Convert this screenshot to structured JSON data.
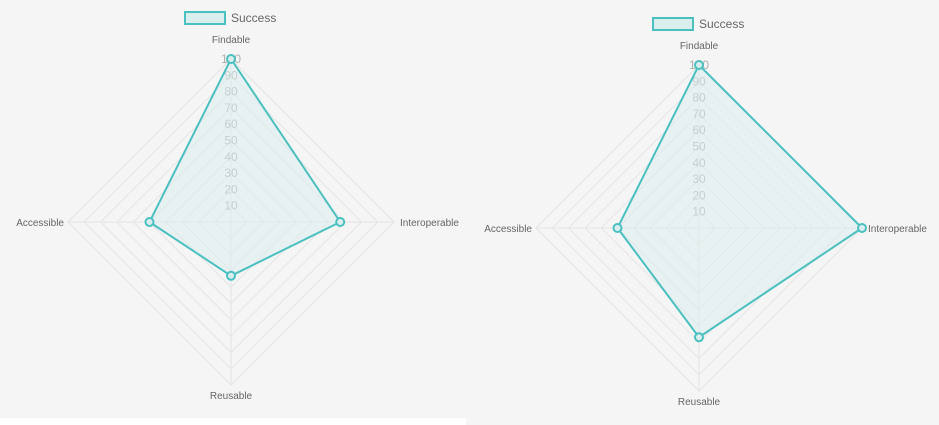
{
  "charts": [
    {
      "chart_data": {
        "type": "radar",
        "labels": [
          "Findable",
          "Interoperable",
          "Reusable",
          "Accessible"
        ],
        "series": [
          {
            "name": "Success",
            "values": [
              100,
              67,
              33,
              50
            ]
          }
        ],
        "r_range": [
          0,
          100
        ],
        "ticks": [
          "10",
          "20",
          "30",
          "40",
          "50",
          "60",
          "70",
          "80",
          "90",
          "100"
        ],
        "legend": "top",
        "colors": {
          "line": "#4bc0c0",
          "fill": "#dbeeee",
          "grid": "#e4e4e4",
          "tick": "#b0b0b0",
          "label": "#666666"
        }
      }
    },
    {
      "chart_data": {
        "type": "radar",
        "labels": [
          "Findable",
          "Interoperable",
          "Reusable",
          "Accessible"
        ],
        "series": [
          {
            "name": "Success",
            "values": [
              100,
              100,
              67,
              50
            ]
          }
        ],
        "r_range": [
          0,
          100
        ],
        "ticks": [
          "10",
          "20",
          "30",
          "40",
          "50",
          "60",
          "70",
          "80",
          "90",
          "100"
        ],
        "legend": "top",
        "colors": {
          "line": "#4bc0c0",
          "fill": "#dbeeee",
          "grid": "#e4e4e4",
          "tick": "#b0b0b0",
          "label": "#666666"
        }
      }
    }
  ]
}
